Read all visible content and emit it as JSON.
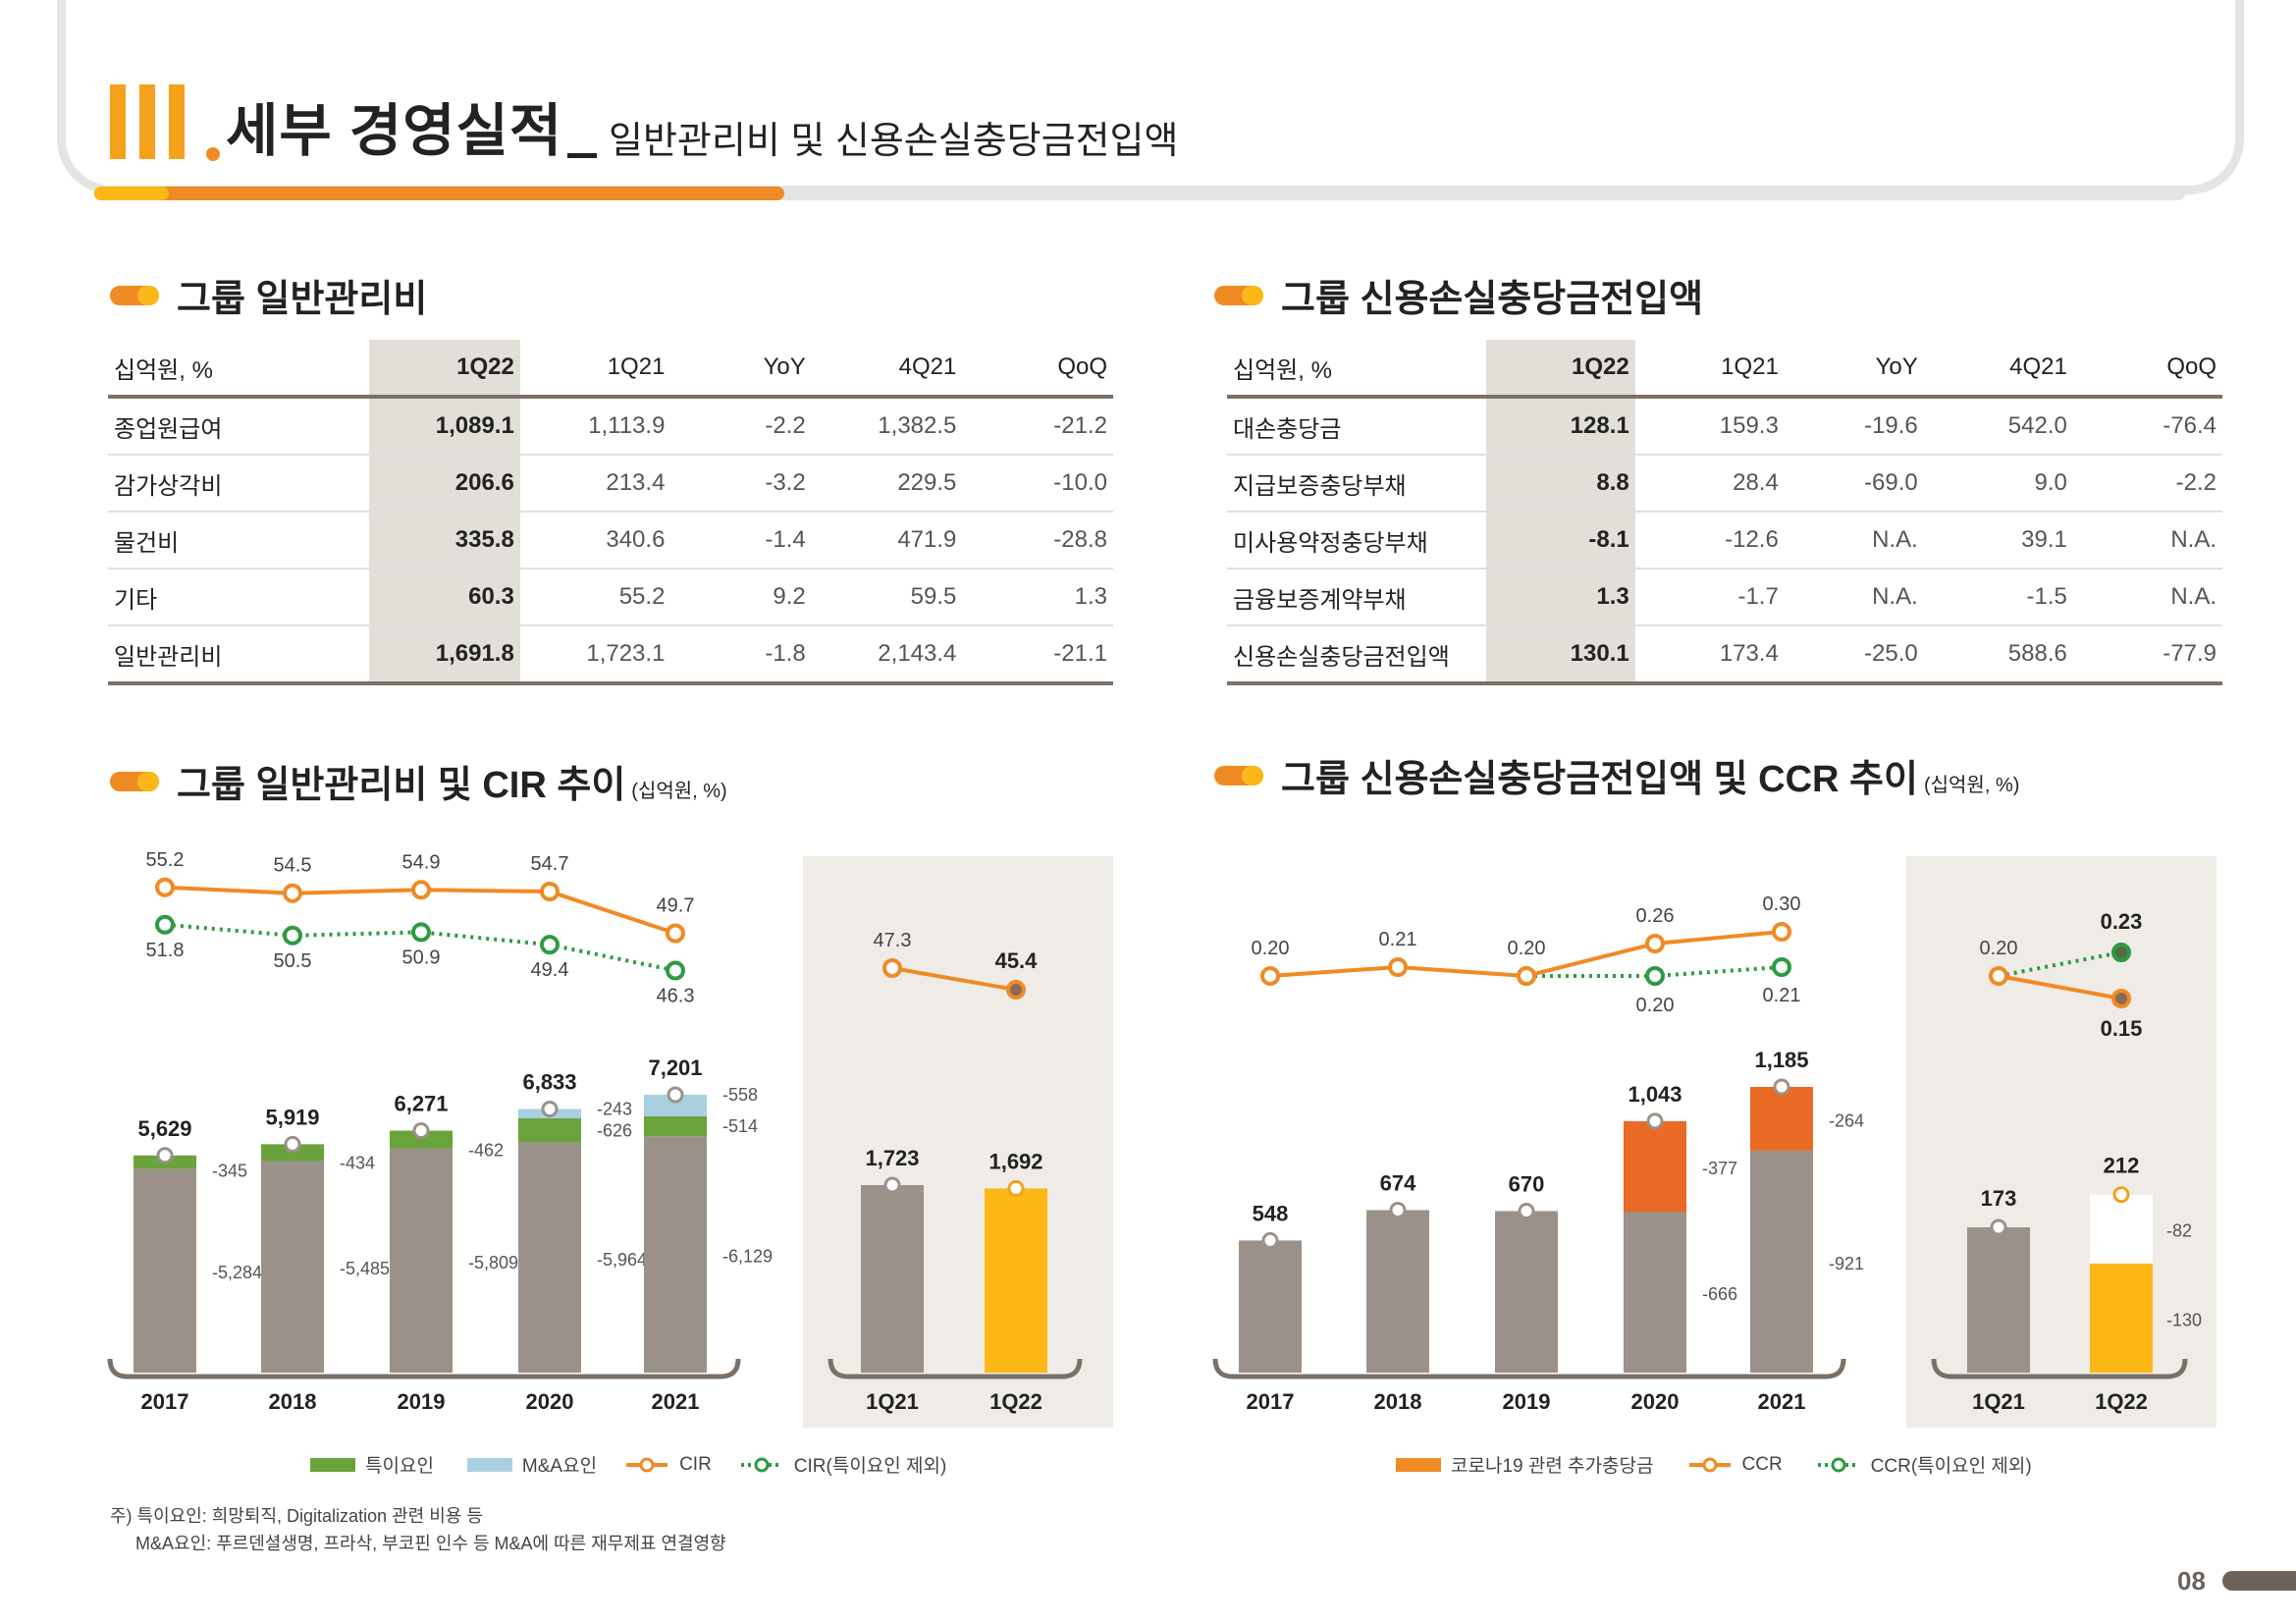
{
  "header": {
    "roman": "III",
    "title": "세부 경영실적",
    "subtitle": "일반관리비 및 신용손실충당금전입액",
    "progress_fraction": 0.33
  },
  "sections": {
    "ga_table_title": "그룹 일반관리비",
    "ccr_table_title": "그룹 신용손실충당금전입액",
    "ga_chart_title": "그룹 일반관리비 및 CIR 추이",
    "ga_chart_unit": "(십억원, %)",
    "ccr_chart_title": "그룹 신용손실충당금전입액 및 CCR 추이",
    "ccr_chart_unit": "(십억원, %)"
  },
  "ga_table": {
    "header": [
      "십억원, %",
      "1Q22",
      "1Q21",
      "YoY",
      "4Q21",
      "QoQ"
    ],
    "rows": [
      [
        "종업원급여",
        "1,089.1",
        "1,113.9",
        "-2.2",
        "1,382.5",
        "-21.2"
      ],
      [
        "감가상각비",
        "206.6",
        "213.4",
        "-3.2",
        "229.5",
        "-10.0"
      ],
      [
        "물건비",
        "335.8",
        "340.6",
        "-1.4",
        "471.9",
        "-28.8"
      ],
      [
        "기타",
        "60.3",
        "55.2",
        "9.2",
        "59.5",
        "1.3"
      ],
      [
        "일반관리비",
        "1,691.8",
        "1,723.1",
        "-1.8",
        "2,143.4",
        "-21.1"
      ]
    ]
  },
  "ccr_table": {
    "header": [
      "십억원, %",
      "1Q22",
      "1Q21",
      "YoY",
      "4Q21",
      "QoQ"
    ],
    "rows": [
      [
        "대손충당금",
        "128.1",
        "159.3",
        "-19.6",
        "542.0",
        "-76.4"
      ],
      [
        "지급보증충당부채",
        "8.8",
        "28.4",
        "-69.0",
        "9.0",
        "-2.2"
      ],
      [
        "미사용약정충당부채",
        "-8.1",
        "-12.6",
        "N.A.",
        "39.1",
        "N.A."
      ],
      [
        "금융보증계약부채",
        "1.3",
        "-1.7",
        "N.A.",
        "-1.5",
        "N.A."
      ],
      [
        "신용손실충당금전입액",
        "130.1",
        "173.4",
        "-25.0",
        "588.6",
        "-77.9"
      ]
    ]
  },
  "chart_data": [
    {
      "type": "bar",
      "categories": [
        "2017",
        "2018",
        "2019",
        "2020",
        "2021"
      ],
      "series": [
        {
          "name": "base",
          "values": [
            5284,
            5485,
            5809,
            5964,
            6129
          ]
        },
        {
          "name": "특이요인",
          "values": [
            345,
            434,
            462,
            626,
            514
          ]
        },
        {
          "name": "M&A요인",
          "values": [
            0,
            0,
            0,
            243,
            558
          ]
        }
      ],
      "totals": [
        5629,
        5919,
        6271,
        6833,
        7201
      ],
      "lines": [
        {
          "name": "CIR",
          "values": [
            55.2,
            54.5,
            54.9,
            54.7,
            49.7
          ]
        },
        {
          "name": "CIR(특이요인 제외)",
          "values": [
            51.8,
            50.5,
            50.9,
            49.4,
            46.3
          ]
        }
      ],
      "ylim": [
        0,
        7600
      ]
    },
    {
      "type": "bar",
      "categories": [
        "1Q21",
        "1Q22"
      ],
      "values": [
        1723,
        1692
      ],
      "bar_colors": [
        "#9a9189",
        "#fbb816"
      ],
      "lines": [
        {
          "name": "CIR",
          "values": [
            47.3,
            45.4
          ]
        }
      ],
      "ylim": [
        0,
        2000
      ]
    },
    {
      "type": "bar",
      "categories": [
        "2017",
        "2018",
        "2019",
        "2020",
        "2021"
      ],
      "series": [
        {
          "name": "base",
          "values": [
            548,
            674,
            670,
            666,
            921
          ]
        },
        {
          "name": "코로나19 관련 추가충당금",
          "values": [
            0,
            0,
            0,
            377,
            264
          ]
        }
      ],
      "totals": [
        548,
        674,
        670,
        1043,
        1185
      ],
      "lines": [
        {
          "name": "CCR",
          "values": [
            0.2,
            0.21,
            0.2,
            0.26,
            0.3
          ]
        },
        {
          "name": "CCR(특이요인 제외)",
          "values": [
            null,
            null,
            0.2,
            0.2,
            0.21
          ]
        }
      ],
      "ylim": [
        0,
        1300
      ]
    },
    {
      "type": "bar",
      "categories": [
        "1Q21",
        "1Q22"
      ],
      "series": [
        {
          "name": "base",
          "values": [
            173,
            130
          ]
        },
        {
          "name": "특이요인",
          "values": [
            0,
            82
          ]
        }
      ],
      "totals": [
        173,
        212
      ],
      "lines": [
        {
          "name": "CCR",
          "values": [
            0.2,
            0.15
          ]
        },
        {
          "name": "CCR(특이요인 제외)",
          "values": [
            0.2,
            0.23
          ]
        }
      ],
      "ylim": [
        0,
        300
      ]
    }
  ],
  "labels": {
    "ga_trend": {
      "cir": [
        "55.2",
        "54.5",
        "54.9",
        "54.7",
        "49.7"
      ],
      "cir_ex": [
        "51.8",
        "50.5",
        "50.9",
        "49.4",
        "46.3"
      ],
      "totals": [
        "5,629",
        "5,919",
        "6,271",
        "6,833",
        "7,201"
      ],
      "base": [
        "5,284",
        "5,485",
        "5,809",
        "5,964",
        "6,129"
      ],
      "special": [
        "345",
        "434",
        "462",
        "626",
        "514"
      ],
      "ma": [
        "",
        "",
        "",
        "243",
        "558"
      ],
      "years": [
        "2017",
        "2018",
        "2019",
        "2020",
        "2021"
      ]
    },
    "ga_q": {
      "cir": [
        "47.3",
        "45.4"
      ],
      "totals": [
        "1,723",
        "1,692"
      ],
      "quarters": [
        "1Q21",
        "1Q22"
      ]
    },
    "ccr_trend": {
      "ccr": [
        "0.20",
        "0.21",
        "0.20",
        "0.26",
        "0.30"
      ],
      "ccr_ex": [
        "0.20",
        "0.21"
      ],
      "totals": [
        "548",
        "674",
        "670",
        "1,043",
        "1,185"
      ],
      "base": [
        "666",
        "921"
      ],
      "covid": [
        "377",
        "264"
      ],
      "years": [
        "2017",
        "2018",
        "2019",
        "2020",
        "2021"
      ]
    },
    "ccr_q": {
      "ccr": [
        "0.20",
        "0.15"
      ],
      "ccr_ex": [
        "0.23"
      ],
      "totals": [
        "173",
        "212"
      ],
      "parts": [
        "82",
        "130"
      ],
      "quarters": [
        "1Q21",
        "1Q22"
      ]
    }
  },
  "legend_left": [
    "특이요인",
    "M&A요인",
    "CIR",
    "CIR(특이요인 제외)"
  ],
  "legend_right": [
    "코로나19 관련 추가충당금",
    "CCR",
    "CCR(특이요인 제외)"
  ],
  "notes": [
    "주) 특이요인: 희망퇴직, Digitalization 관련 비용 등",
    "M&A요인: 푸르덴셜생명, 프라삭, 부코핀 인수 등 M&A에 따른 재무제표 연결영향"
  ],
  "page_number": "08",
  "colors": {
    "orange": "#f08a24",
    "yellow": "#fbb816",
    "gray_bar": "#9a9189",
    "green": "#6aa23b",
    "light_blue": "#a8d0e0",
    "covid_orange": "#e86a25",
    "dotted_green": "#2e9a43"
  }
}
